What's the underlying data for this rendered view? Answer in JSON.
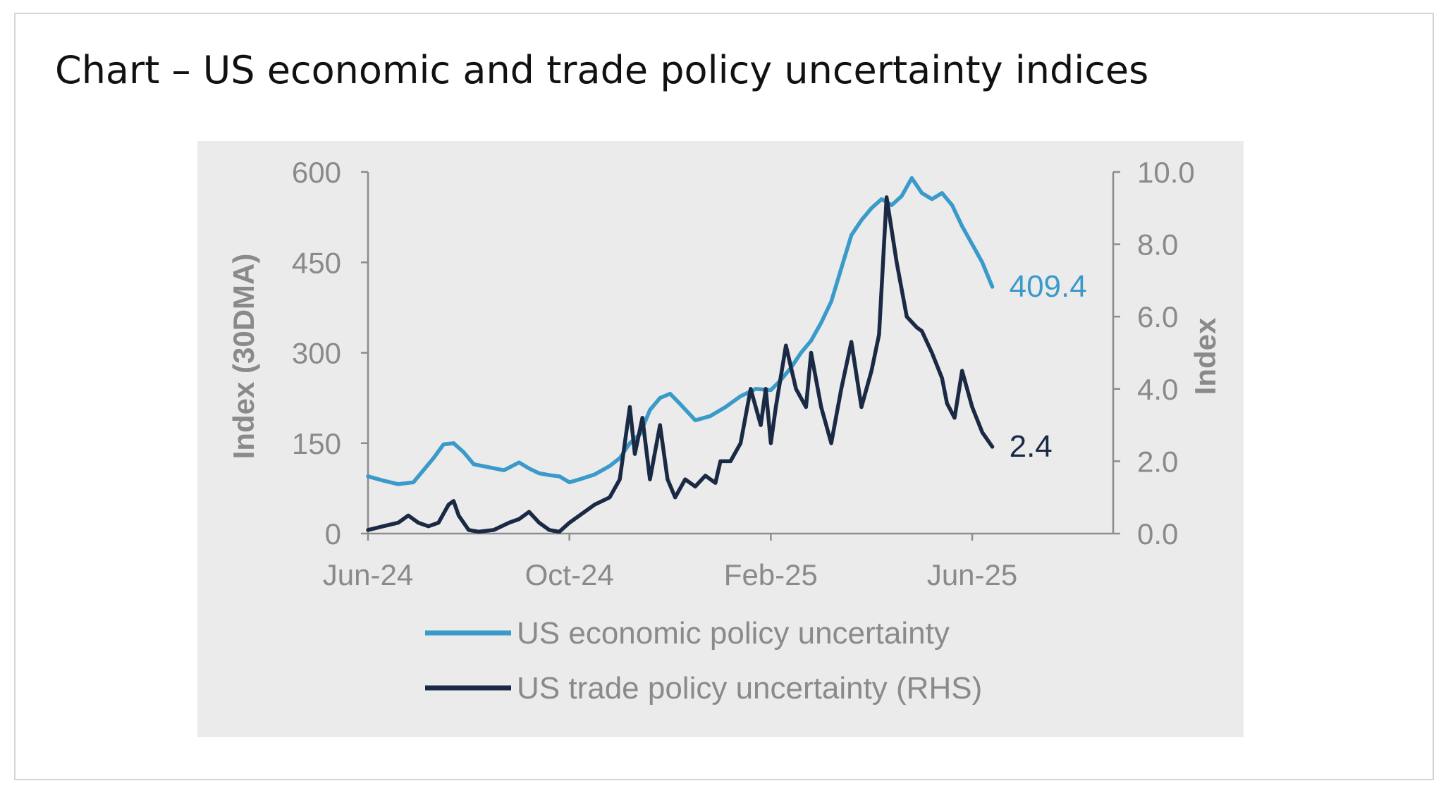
{
  "title": "Chart – US economic and trade policy uncertainty indices",
  "chart_data": {
    "type": "line",
    "x_tick_labels": [
      "Jun-24",
      "Oct-24",
      "Feb-25",
      "Jun-25"
    ],
    "x_domain_months": [
      0,
      14.8
    ],
    "x_tick_positions_months": [
      0,
      4,
      8,
      12
    ],
    "left_axis": {
      "label": "Index (30DMA)",
      "ylim": [
        0,
        600
      ],
      "ticks": [
        0,
        150,
        300,
        450,
        600
      ],
      "tick_labels": [
        "0",
        "150",
        "300",
        "450",
        "600"
      ]
    },
    "right_axis": {
      "label": "Index",
      "ylim": [
        0,
        10
      ],
      "ticks": [
        0,
        2,
        4,
        6,
        8,
        10
      ],
      "tick_labels": [
        "0.0",
        "2.0",
        "4.0",
        "6.0",
        "8.0",
        "10.0"
      ]
    },
    "series": [
      {
        "name": "US economic policy uncertainty",
        "axis": "left",
        "color": "#3a9ac9",
        "end_label": "409.4",
        "x": [
          0,
          0.3,
          0.6,
          0.9,
          1.1,
          1.3,
          1.5,
          1.7,
          1.9,
          2.1,
          2.4,
          2.7,
          3.0,
          3.2,
          3.4,
          3.6,
          3.8,
          4.0,
          4.2,
          4.5,
          4.8,
          5.0,
          5.2,
          5.4,
          5.6,
          5.8,
          6.0,
          6.2,
          6.5,
          6.8,
          7.1,
          7.4,
          7.7,
          8.0,
          8.2,
          8.4,
          8.6,
          8.8,
          9.0,
          9.2,
          9.4,
          9.6,
          9.8,
          10.0,
          10.2,
          10.4,
          10.6,
          10.8,
          11.0,
          11.2,
          11.4,
          11.6,
          11.8,
          12.0,
          12.2,
          12.4
        ],
        "values": [
          95,
          88,
          82,
          85,
          105,
          125,
          148,
          150,
          135,
          115,
          110,
          105,
          118,
          108,
          100,
          97,
          95,
          85,
          90,
          98,
          112,
          125,
          150,
          165,
          205,
          225,
          232,
          215,
          188,
          195,
          210,
          228,
          240,
          238,
          255,
          275,
          300,
          320,
          350,
          385,
          440,
          495,
          520,
          540,
          555,
          545,
          560,
          590,
          565,
          555,
          565,
          545,
          510,
          480,
          450,
          409.4
        ]
      },
      {
        "name": "US trade policy uncertainty (RHS)",
        "axis": "right",
        "color": "#1b2a44",
        "end_label": "2.4",
        "x": [
          0,
          0.3,
          0.6,
          0.8,
          1.0,
          1.2,
          1.4,
          1.6,
          1.7,
          1.8,
          2.0,
          2.2,
          2.5,
          2.8,
          3.0,
          3.2,
          3.4,
          3.6,
          3.8,
          4.0,
          4.2,
          4.5,
          4.8,
          5.0,
          5.2,
          5.3,
          5.45,
          5.6,
          5.8,
          5.95,
          6.1,
          6.3,
          6.5,
          6.7,
          6.9,
          7.0,
          7.2,
          7.4,
          7.6,
          7.8,
          7.9,
          8.0,
          8.1,
          8.3,
          8.5,
          8.7,
          8.8,
          9.0,
          9.2,
          9.4,
          9.6,
          9.8,
          10.0,
          10.15,
          10.3,
          10.5,
          10.7,
          10.9,
          11.0,
          11.2,
          11.4,
          11.5,
          11.65,
          11.8,
          12.0,
          12.2,
          12.4
        ],
        "values": [
          0.1,
          0.2,
          0.3,
          0.5,
          0.3,
          0.2,
          0.3,
          0.8,
          0.9,
          0.5,
          0.1,
          0.05,
          0.1,
          0.3,
          0.4,
          0.6,
          0.3,
          0.1,
          0.05,
          0.3,
          0.5,
          0.8,
          1.0,
          1.5,
          3.5,
          2.2,
          3.2,
          1.5,
          3.0,
          1.5,
          1.0,
          1.5,
          1.3,
          1.6,
          1.4,
          2.0,
          2.0,
          2.5,
          4.0,
          3.0,
          4.0,
          2.5,
          3.5,
          5.2,
          4.0,
          3.5,
          5.0,
          3.5,
          2.5,
          4.0,
          5.3,
          3.5,
          4.5,
          5.5,
          9.3,
          7.5,
          6.0,
          5.7,
          5.6,
          5.0,
          4.3,
          3.6,
          3.2,
          4.5,
          3.5,
          2.8,
          2.4
        ]
      }
    ],
    "legend_position": "bottom"
  }
}
